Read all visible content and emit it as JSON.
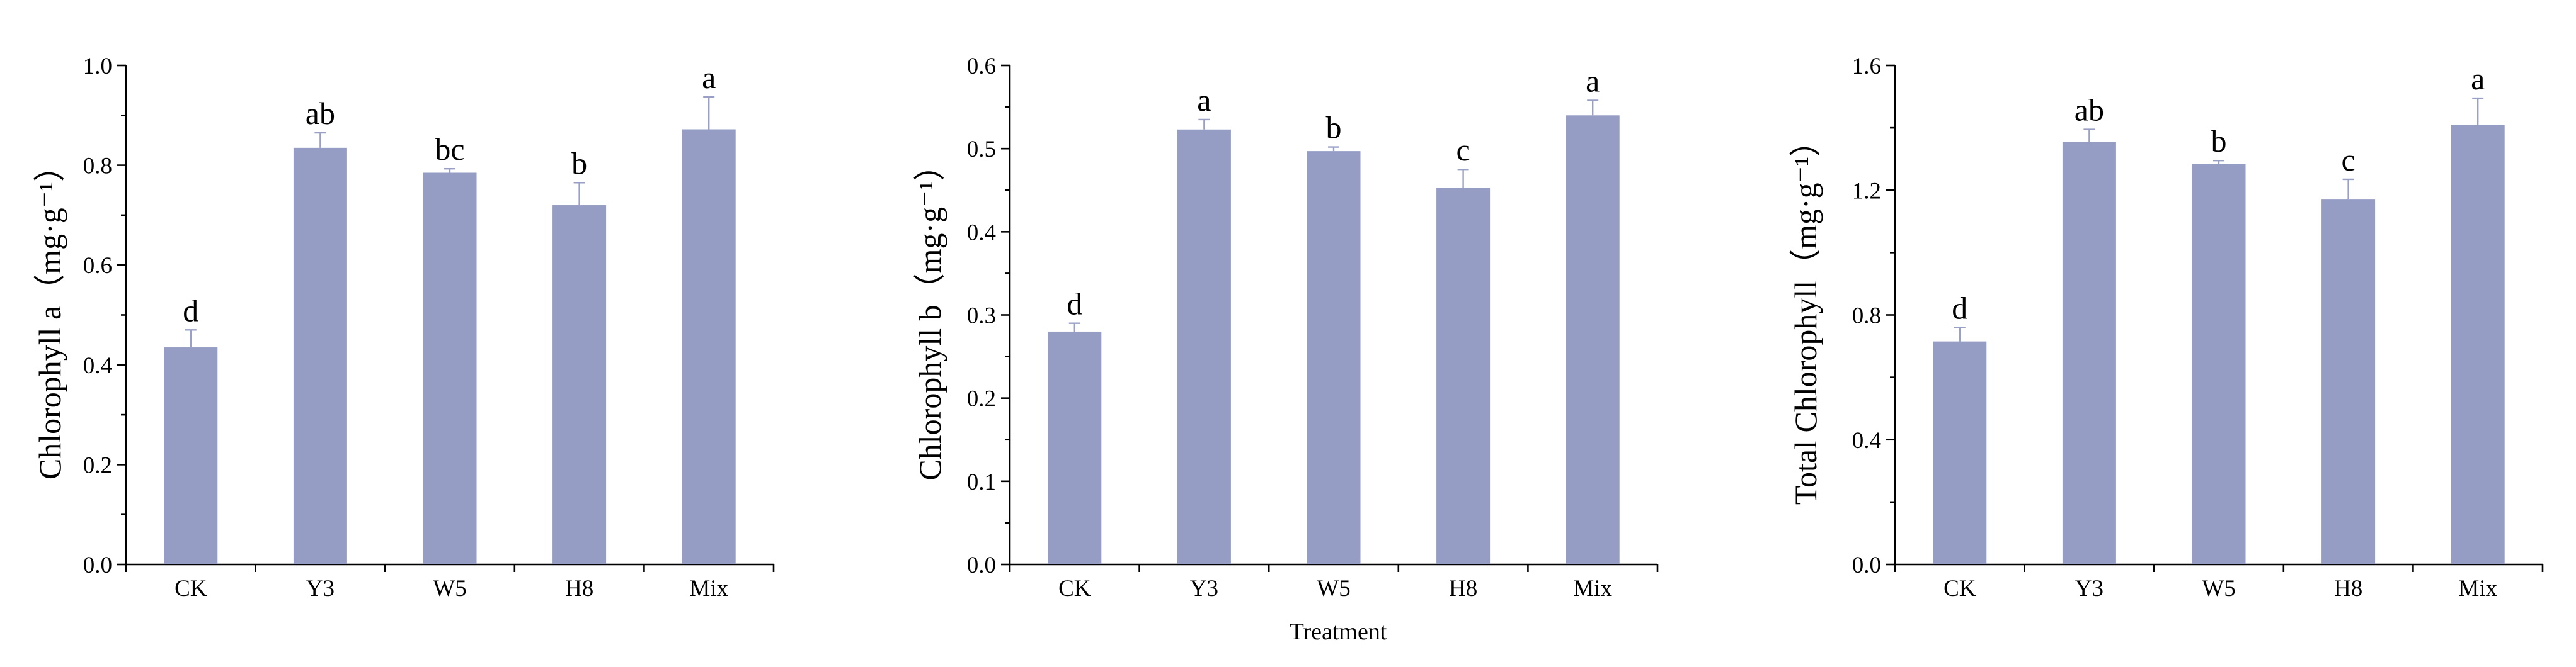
{
  "bar_color": "#959dc4",
  "error_color": "#9a9fc6",
  "xtitle": "Treatment",
  "chart_data": [
    {
      "type": "bar",
      "categories": [
        "CK",
        "Y3",
        "W5",
        "H8",
        "Mix"
      ],
      "values": [
        0.435,
        0.835,
        0.785,
        0.72,
        0.872
      ],
      "errors": [
        0.035,
        0.03,
        0.008,
        0.045,
        0.065
      ],
      "labels": [
        "d",
        "ab",
        "bc",
        "b",
        "a"
      ],
      "ylabel": "Chlorophyll a（mg·g⁻¹）",
      "ylim": [
        0,
        1.0
      ],
      "yticks": [
        0.0,
        0.2,
        0.4,
        0.6,
        0.8,
        1.0
      ],
      "ytick_labels": [
        "0.0",
        "0.2",
        "0.4",
        "0.6",
        "0.8",
        "1.0"
      ]
    },
    {
      "type": "bar",
      "categories": [
        "CK",
        "Y3",
        "W5",
        "H8",
        "Mix"
      ],
      "values": [
        0.28,
        0.523,
        0.497,
        0.453,
        0.54
      ],
      "errors": [
        0.01,
        0.012,
        0.005,
        0.022,
        0.018
      ],
      "labels": [
        "d",
        "a",
        "b",
        "c",
        "a"
      ],
      "ylabel": "Chlorophyll b（mg·g⁻¹）",
      "ylim": [
        0,
        0.6
      ],
      "yticks": [
        0.0,
        0.1,
        0.2,
        0.3,
        0.4,
        0.5,
        0.6
      ],
      "ytick_labels": [
        "0.0",
        "0.1",
        "0.2",
        "0.3",
        "0.4",
        "0.5",
        "0.6"
      ]
    },
    {
      "type": "bar",
      "categories": [
        "CK",
        "Y3",
        "W5",
        "H8",
        "Mix"
      ],
      "values": [
        0.715,
        1.355,
        1.285,
        1.17,
        1.41
      ],
      "errors": [
        0.045,
        0.04,
        0.01,
        0.065,
        0.085
      ],
      "labels": [
        "d",
        "ab",
        "b",
        "c",
        "a"
      ],
      "ylabel": "Total Chlorophyll（mg·g⁻¹）",
      "ylim": [
        0,
        1.6
      ],
      "yticks": [
        0.0,
        0.4,
        0.8,
        1.2,
        1.6
      ],
      "ytick_labels": [
        "0.0",
        "0.4",
        "0.8",
        "1.2",
        "1.6"
      ]
    }
  ]
}
